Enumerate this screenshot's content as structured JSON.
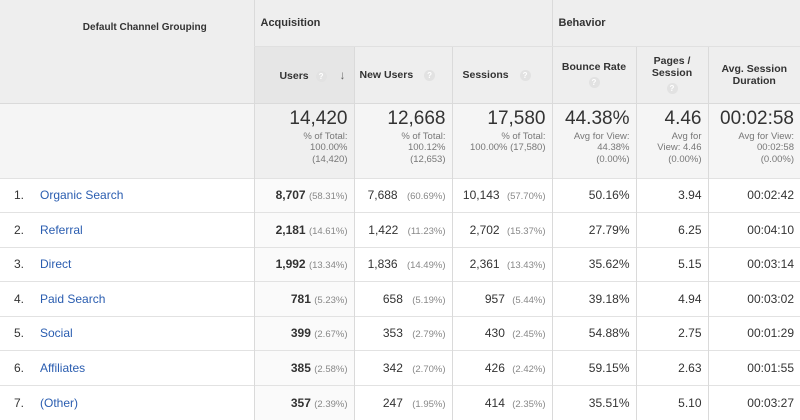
{
  "header": {
    "dimension_label": "Default Channel Grouping",
    "groups": {
      "acquisition": "Acquisition",
      "behavior": "Behavior"
    },
    "columns": {
      "users": "Users",
      "new_users": "New Users",
      "sessions": "Sessions",
      "bounce_rate": "Bounce Rate",
      "pages_per_session_1": "Pages /",
      "pages_per_session_2": "Session",
      "avg_duration_1": "Avg. Session",
      "avg_duration_2": "Duration"
    },
    "help_glyph": "?",
    "sort_glyph": "↓"
  },
  "totals": {
    "users": {
      "value": "14,420",
      "l1": "% of Total:",
      "l2": "100.00%",
      "l3": "(14,420)"
    },
    "new_users": {
      "value": "12,668",
      "l1": "% of Total:",
      "l2": "100.12%",
      "l3": "(12,653)"
    },
    "sessions": {
      "value": "17,580",
      "l1": "% of Total:",
      "l2": "100.00% (17,580)",
      "l3": ""
    },
    "bounce_rate": {
      "value": "44.38%",
      "l1": "Avg for View:",
      "l2": "44.38%",
      "l3": "(0.00%)"
    },
    "pages_per_session": {
      "value": "4.46",
      "l1": "Avg for",
      "l2": "View: 4.46",
      "l3": "(0.00%)"
    },
    "avg_duration": {
      "value": "00:02:58",
      "l1": "Avg for View:",
      "l2": "00:02:58",
      "l3": "(0.00%)"
    }
  },
  "rows": [
    {
      "idx": "1.",
      "channel": "Organic Search",
      "users": "8,707",
      "users_pct": "(58.31%)",
      "new_users": "7,688",
      "new_users_pct": "(60.69%)",
      "sessions": "10,143",
      "sessions_pct": "(57.70%)",
      "bounce_rate": "50.16%",
      "pages": "3.94",
      "duration": "00:02:42"
    },
    {
      "idx": "2.",
      "channel": "Referral",
      "users": "2,181",
      "users_pct": "(14.61%)",
      "new_users": "1,422",
      "new_users_pct": "(11.23%)",
      "sessions": "2,702",
      "sessions_pct": "(15.37%)",
      "bounce_rate": "27.79%",
      "pages": "6.25",
      "duration": "00:04:10"
    },
    {
      "idx": "3.",
      "channel": "Direct",
      "users": "1,992",
      "users_pct": "(13.34%)",
      "new_users": "1,836",
      "new_users_pct": "(14.49%)",
      "sessions": "2,361",
      "sessions_pct": "(13.43%)",
      "bounce_rate": "35.62%",
      "pages": "5.15",
      "duration": "00:03:14"
    },
    {
      "idx": "4.",
      "channel": "Paid Search",
      "users": "781",
      "users_pct": "(5.23%)",
      "new_users": "658",
      "new_users_pct": "(5.19%)",
      "sessions": "957",
      "sessions_pct": "(5.44%)",
      "bounce_rate": "39.18%",
      "pages": "4.94",
      "duration": "00:03:02"
    },
    {
      "idx": "5.",
      "channel": "Social",
      "users": "399",
      "users_pct": "(2.67%)",
      "new_users": "353",
      "new_users_pct": "(2.79%)",
      "sessions": "430",
      "sessions_pct": "(2.45%)",
      "bounce_rate": "54.88%",
      "pages": "2.75",
      "duration": "00:01:29"
    },
    {
      "idx": "6.",
      "channel": "Affiliates",
      "users": "385",
      "users_pct": "(2.58%)",
      "new_users": "342",
      "new_users_pct": "(2.70%)",
      "sessions": "426",
      "sessions_pct": "(2.42%)",
      "bounce_rate": "59.15%",
      "pages": "2.63",
      "duration": "00:01:55"
    },
    {
      "idx": "7.",
      "channel": "(Other)",
      "users": "357",
      "users_pct": "(2.39%)",
      "new_users": "247",
      "new_users_pct": "(1.95%)",
      "sessions": "414",
      "sessions_pct": "(2.35%)",
      "bounce_rate": "35.51%",
      "pages": "5.10",
      "duration": "00:03:27"
    }
  ]
}
